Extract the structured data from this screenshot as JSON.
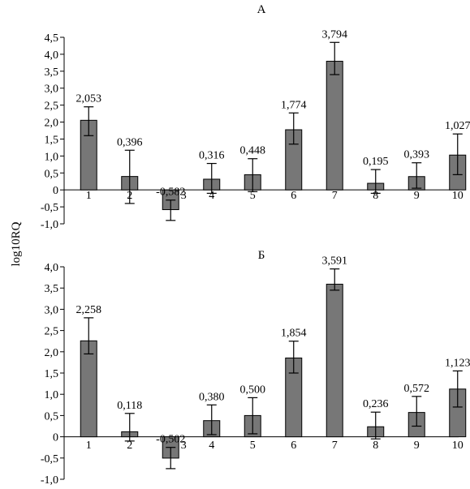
{
  "ylabel": "log10RQ",
  "chart_data": [
    {
      "type": "bar",
      "title": "А",
      "ylabel": "log10RQ",
      "ylim": [
        -1.0,
        4.5
      ],
      "yticks": [
        "-1,0",
        "-0,5",
        "0",
        "0,5",
        "1,0",
        "1,5",
        "2,0",
        "2,5",
        "3,0",
        "3,5",
        "4,0",
        "4,5"
      ],
      "categories": [
        "1",
        "2",
        "3",
        "4",
        "5",
        "6",
        "7",
        "8",
        "9",
        "10"
      ],
      "values": [
        2.053,
        0.396,
        -0.582,
        0.316,
        0.448,
        1.774,
        3.794,
        0.195,
        0.393,
        1.027
      ],
      "value_labels": [
        "2,053",
        "0,396",
        "-0,582",
        "0,316",
        "0,448",
        "1,774",
        "3,794",
        "0,195",
        "0,393",
        "1,027"
      ],
      "error_low": [
        1.6,
        -0.4,
        -0.9,
        -0.1,
        -0.05,
        1.35,
        3.4,
        -0.1,
        0.05,
        0.45
      ],
      "error_high": [
        2.45,
        1.17,
        -0.3,
        0.78,
        0.92,
        2.27,
        4.35,
        0.6,
        0.8,
        1.65
      ],
      "bar_color": "#777777",
      "grid": false
    },
    {
      "type": "bar",
      "title": "Б",
      "ylabel": "log10RQ",
      "ylim": [
        -1.0,
        4.0
      ],
      "yticks": [
        "-1,0",
        "-0,5",
        "0",
        "0,5",
        "1,0",
        "1,5",
        "2,0",
        "2,5",
        "3,0",
        "3,5",
        "4,0"
      ],
      "categories": [
        "1",
        "2",
        "3",
        "4",
        "5",
        "6",
        "7",
        "8",
        "9",
        "10"
      ],
      "values": [
        2.258,
        0.118,
        -0.502,
        0.38,
        0.5,
        1.854,
        3.591,
        0.236,
        0.572,
        1.123
      ],
      "value_labels": [
        "2,258",
        "0,118",
        "-0,502",
        "0,380",
        "0,500",
        "1,854",
        "3,591",
        "0,236",
        "0,572",
        "1,123"
      ],
      "error_low": [
        1.95,
        -0.1,
        -0.75,
        0.05,
        0.07,
        1.5,
        3.45,
        -0.05,
        0.25,
        0.7
      ],
      "error_high": [
        2.8,
        0.55,
        -0.25,
        0.75,
        0.92,
        2.25,
        3.95,
        0.58,
        0.95,
        1.55
      ],
      "bar_color": "#777777",
      "grid": false
    }
  ]
}
